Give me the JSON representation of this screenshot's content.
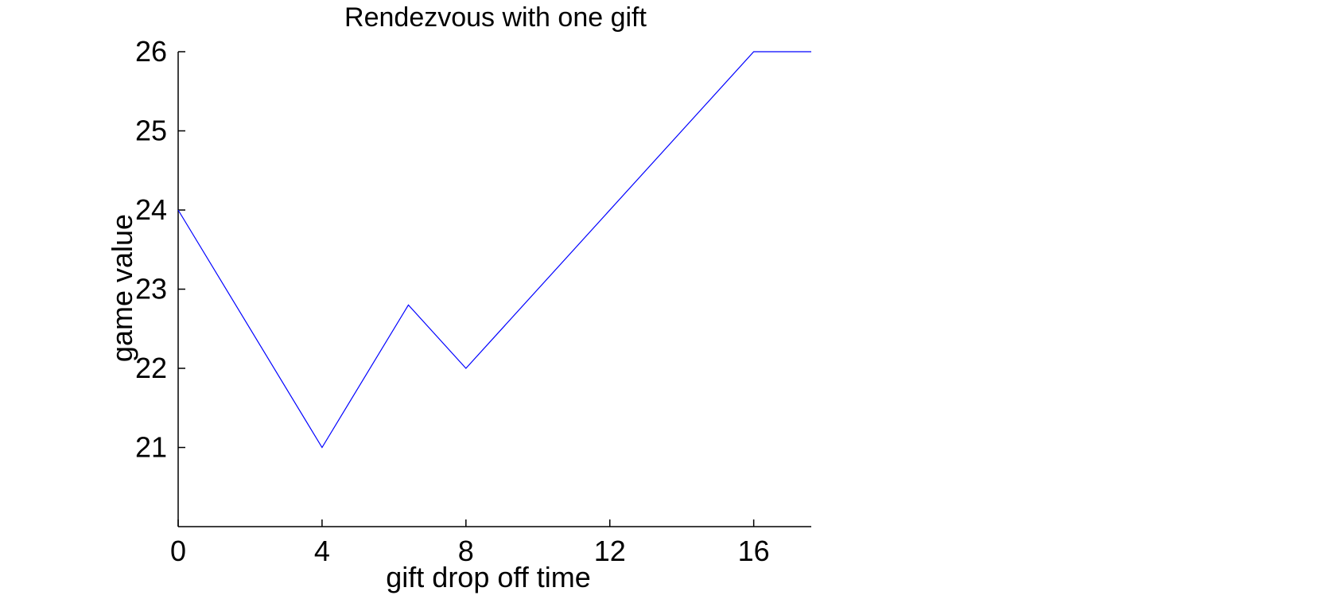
{
  "chart_data": {
    "type": "line",
    "title": "Rendezvous with one gift",
    "xlabel": "gift drop off time",
    "ylabel": "game value",
    "xlim": [
      0,
      17.6
    ],
    "ylim": [
      20,
      26
    ],
    "x_ticks": [
      0,
      4,
      8,
      12,
      16
    ],
    "y_ticks": [
      21,
      22,
      23,
      24,
      25,
      26
    ],
    "grid": false,
    "series": [
      {
        "color": "#0000ff",
        "x": [
          0,
          4,
          6.4,
          8,
          16,
          17.6
        ],
        "y": [
          24,
          21,
          22.8,
          22,
          26,
          26
        ]
      }
    ]
  }
}
